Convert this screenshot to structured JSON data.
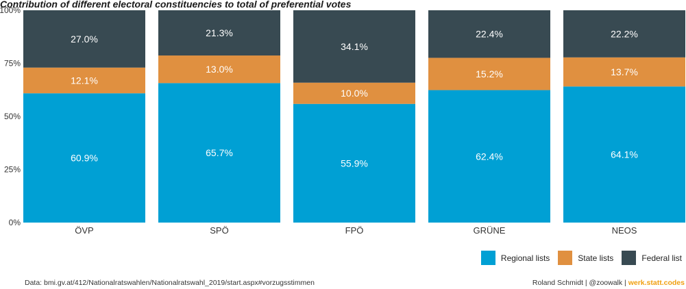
{
  "chart_data": {
    "type": "bar",
    "stacked": true,
    "title": "Contribution of different electoral constituencies to total of preferential votes",
    "categories": [
      "ÖVP",
      "SPÖ",
      "FPÖ",
      "GRÜNE",
      "NEOS"
    ],
    "series": [
      {
        "name": "Regional lists",
        "color": "#00a0d4",
        "values": [
          60.9,
          65.7,
          55.9,
          62.4,
          64.1
        ],
        "labels": [
          "60.9%",
          "65.7%",
          "55.9%",
          "62.4%",
          "64.1%"
        ]
      },
      {
        "name": "State lists",
        "color": "#e09040",
        "values": [
          12.1,
          13.0,
          10.0,
          15.2,
          13.7
        ],
        "labels": [
          "12.1%",
          "13.0%",
          "10.0%",
          "15.2%",
          "13.7%"
        ]
      },
      {
        "name": "Federal list",
        "color": "#384a52",
        "values": [
          27.0,
          21.3,
          34.1,
          22.4,
          22.2
        ],
        "labels": [
          "27.0%",
          "21.3%",
          "34.1%",
          "22.4%",
          "22.2%"
        ]
      }
    ],
    "yticks": [
      "0%",
      "25%",
      "50%",
      "75%",
      "100%"
    ],
    "ylim": [
      0,
      100
    ],
    "legend_position": "bottom-right",
    "grid": false
  },
  "footer": {
    "source": "Data: bmi.gv.at/412/Nationalratswahlen/Nationalratswahl_2019/start.aspx#vorzugsstimmen",
    "author": "Roland Schmidt | @zoowalk | ",
    "brand": "werk.statt.codes"
  }
}
